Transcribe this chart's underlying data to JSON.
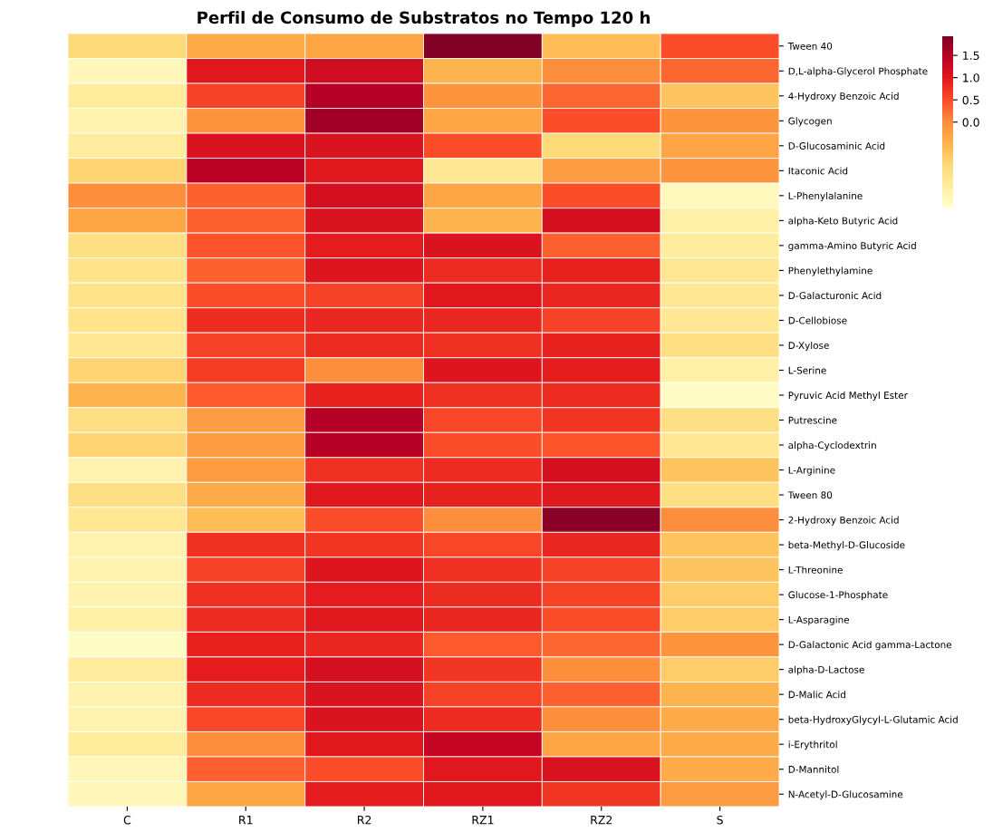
{
  "chart_data": {
    "type": "heatmap",
    "title": "Perfil de Consumo de Substratos no Tempo 120 h",
    "categories": [
      "C",
      "R1",
      "R2",
      "RZ1",
      "RZ2",
      "S"
    ],
    "y_categories": [
      "Tween 40",
      "D,L-alpha-Glycerol Phosphate",
      "4-Hydroxy Benzoic Acid",
      "Glycogen",
      "D-Glucosaminic Acid",
      "Itaconic Acid",
      "L-Phenylalanine",
      "alpha-Keto Butyric Acid",
      "gamma-Amino Butyric Acid",
      "Phenylethylamine",
      "D-Galacturonic Acid",
      "D-Cellobiose",
      "D-Xylose",
      "L-Serine",
      "Pyruvic Acid Methyl Ester",
      "Putrescine",
      "alpha-Cyclodextrin",
      "L-Arginine",
      "Tween 80",
      "2-Hydroxy Benzoic Acid",
      "beta-Methyl-D-Glucoside",
      "L-Threonine",
      "Glucose-1-Phosphate",
      "L-Asparagine",
      "D-Galactonic Acid gamma-Lactone",
      "alpha-D-Lactose",
      "D-Malic Acid",
      "beta-HydroxyGlycyl-L-Glutamic Acid",
      "i-Erythritol",
      "D-Mannitol",
      "N-Acetyl-D-Glucosamine"
    ],
    "cells": [
      [
        -1.0,
        -0.4,
        -0.3,
        1.9,
        -0.6,
        0.5
      ],
      [
        -1.7,
        1.0,
        1.2,
        -0.5,
        0.0,
        0.3
      ],
      [
        -1.4,
        0.6,
        1.5,
        -0.1,
        0.3,
        -0.7
      ],
      [
        -1.6,
        -0.1,
        1.65,
        -0.3,
        0.5,
        -0.1
      ],
      [
        -1.4,
        1.1,
        1.1,
        0.5,
        -1.0,
        -0.3
      ],
      [
        -0.9,
        1.45,
        1.0,
        -1.3,
        -0.2,
        -0.1
      ],
      [
        0.0,
        0.35,
        1.15,
        -0.3,
        0.5,
        -1.75
      ],
      [
        -0.3,
        0.35,
        1.1,
        -0.5,
        1.15,
        -1.5
      ],
      [
        -1.1,
        0.45,
        0.95,
        1.1,
        0.35,
        -1.4
      ],
      [
        -1.2,
        0.35,
        1.05,
        0.8,
        0.9,
        -1.3
      ],
      [
        -1.2,
        0.5,
        0.6,
        1.0,
        0.85,
        -1.3
      ],
      [
        -1.2,
        0.8,
        0.85,
        0.85,
        0.6,
        -1.3
      ],
      [
        -1.3,
        0.6,
        0.8,
        0.75,
        0.9,
        -1.1
      ],
      [
        -0.9,
        0.65,
        0.0,
        1.05,
        0.95,
        -1.5
      ],
      [
        -0.5,
        0.4,
        0.9,
        0.75,
        0.8,
        -1.85
      ],
      [
        -1.1,
        -0.2,
        1.5,
        0.55,
        0.7,
        -1.1
      ],
      [
        -0.9,
        -0.2,
        1.5,
        0.5,
        0.45,
        -1.3
      ],
      [
        -1.6,
        -0.2,
        0.75,
        0.8,
        1.15,
        -0.7
      ],
      [
        -1.1,
        -0.4,
        1.0,
        0.9,
        1.0,
        -1.1
      ],
      [
        -1.3,
        -0.6,
        0.5,
        0.0,
        1.85,
        0.0
      ],
      [
        -1.6,
        0.75,
        0.7,
        0.55,
        0.85,
        -0.7
      ],
      [
        -1.6,
        0.6,
        1.05,
        0.75,
        0.6,
        -0.7
      ],
      [
        -1.6,
        0.75,
        0.95,
        0.8,
        0.6,
        -0.8
      ],
      [
        -1.5,
        0.8,
        1.0,
        0.85,
        0.5,
        -0.8
      ],
      [
        -1.85,
        0.9,
        0.85,
        0.4,
        0.3,
        -0.1
      ],
      [
        -1.4,
        0.95,
        1.15,
        0.7,
        0.0,
        -0.8
      ],
      [
        -1.6,
        0.8,
        1.1,
        0.6,
        0.35,
        -0.5
      ],
      [
        -1.6,
        0.55,
        1.1,
        0.8,
        0.0,
        -0.4
      ],
      [
        -1.4,
        0.0,
        1.0,
        1.35,
        -0.3,
        -0.4
      ],
      [
        -1.7,
        0.35,
        0.5,
        1.0,
        1.1,
        -0.4
      ],
      [
        -1.7,
        -0.3,
        0.95,
        1.0,
        0.7,
        -0.2
      ]
    ],
    "clim": [
      -1.92,
      1.93
    ],
    "cticks": [
      {
        "value": 0.0,
        "label": "0.0"
      },
      {
        "value": 0.5,
        "label": "0.5"
      },
      {
        "value": 1.0,
        "label": "1.0"
      },
      {
        "value": 1.5,
        "label": "1.5"
      }
    ]
  }
}
